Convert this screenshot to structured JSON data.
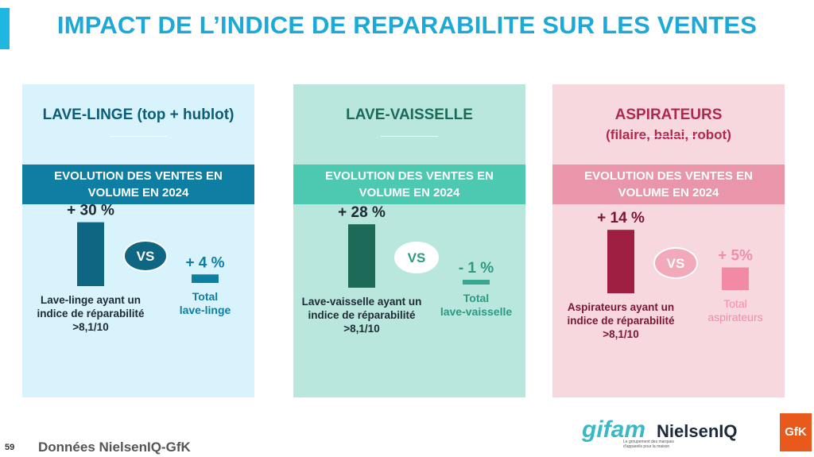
{
  "page": {
    "title": "IMPACT DE L’INDICE DE REPARABILITE SUR LES VENTES",
    "page_number": "59",
    "source": "Données NielsenIQ-GfK"
  },
  "colors": {
    "title": "#1aa9d8",
    "lave_linge_bar": "#0e6683",
    "lave_vaisselle_bar": "#1e6a59",
    "aspirateurs_bar": "#9e1f40"
  },
  "chart_data": [
    {
      "type": "bar",
      "title": "LAVE-LINGE (top + hublot)",
      "subtitle": "",
      "band": [
        "EVOLUTION DES VENTES EN",
        "VOLUME EN 2024"
      ],
      "categories": [
        "Lave-linge ayant un indice de réparabilité >8,1/10",
        "Total lave-linge"
      ],
      "category_lines": [
        [
          "Lave-linge ayant un",
          "indice de réparabilité",
          ">8,1/10"
        ],
        [
          "Total",
          "lave-linge"
        ]
      ],
      "values": [
        30,
        4
      ],
      "value_labels": [
        "+ 30 %",
        "+ 4 %"
      ],
      "vs_label": "VS",
      "unit": "%"
    },
    {
      "type": "bar",
      "title": "LAVE-VAISSELLE",
      "subtitle": "",
      "band": [
        "EVOLUTION DES VENTES EN",
        "VOLUME EN 2024"
      ],
      "categories": [
        "Lave-vaisselle ayant un indice de réparabilité >8,1/10",
        "Total lave-vaisselle"
      ],
      "category_lines": [
        [
          "Lave-vaisselle ayant un",
          "indice de réparabilité",
          ">8,1/10"
        ],
        [
          "Total",
          "lave-vaisselle"
        ]
      ],
      "values": [
        28,
        -1
      ],
      "value_labels": [
        "+ 28 %",
        "- 1 %"
      ],
      "vs_label": "VS",
      "unit": "%"
    },
    {
      "type": "bar",
      "title": "ASPIRATEURS",
      "subtitle": "(filaire, balai, robot)",
      "band": [
        "EVOLUTION DES VENTES EN",
        "VOLUME EN 2024"
      ],
      "categories": [
        "Aspirateurs ayant un indice de réparabilité >8,1/10",
        "Total aspirateurs"
      ],
      "category_lines": [
        [
          "Aspirateurs ayant un",
          "indice de réparabilité",
          ">8,1/10"
        ],
        [
          "Total",
          "aspirateurs"
        ]
      ],
      "values": [
        14,
        5
      ],
      "value_labels": [
        "+ 14 %",
        "+ 5%"
      ],
      "vs_label": "VS",
      "unit": "%"
    }
  ],
  "logos": {
    "gifam": "gifam",
    "gifam_tagline": "Le groupement des marques d'appareils pour la maison",
    "nielseniq": "NielsenIQ",
    "gfk": "GfK"
  }
}
